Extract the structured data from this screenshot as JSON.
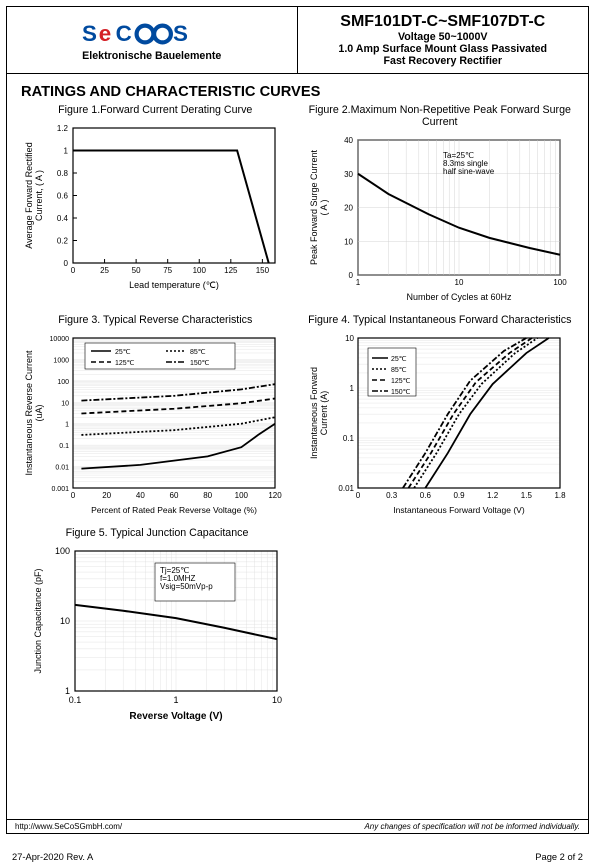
{
  "header": {
    "company_sub": "Elektronische Bauelemente",
    "partnum": "SMF101DT-C~SMF107DT-C",
    "subtitle1": "Voltage 50~1000V",
    "subtitle2": "1.0 Amp Surface Mount Glass Passivated",
    "subtitle3": "Fast Recovery Rectifier",
    "logo_colors": {
      "s1": "#004a9f",
      "e": "#d42027",
      "c": "#004a9f",
      "o": "#004a9f",
      "s2": "#004a9f"
    }
  },
  "section_title": "RATINGS AND CHARACTERISTIC CURVES",
  "fig1": {
    "title": "Figure 1.Forward Current Derating Curve",
    "xlabel": "Lead temperature (℃)",
    "ylabel": "Average Forward Rectified\nCurrent, ( A )",
    "xlim": [
      0,
      160
    ],
    "ylim": [
      0,
      1.2
    ],
    "xtick": [
      0,
      25,
      50,
      75,
      100,
      125,
      150
    ],
    "ytick": [
      0,
      0.2,
      0.4,
      0.6,
      0.8,
      1,
      1.2
    ],
    "line_color": "#000000",
    "data": [
      [
        0,
        1
      ],
      [
        130,
        1
      ],
      [
        155,
        0
      ]
    ]
  },
  "fig2": {
    "title": "Figure 2.Maximum Non-Repetitive Peak\nForward Surge Current",
    "xlabel": "Number of Cycles at 60Hz",
    "ylabel": "Peak Forward Surge Current\n( A )",
    "xscale": "log",
    "xlim": [
      1,
      100
    ],
    "ylim": [
      0,
      40
    ],
    "ytick": [
      0,
      10,
      20,
      30,
      40
    ],
    "note": "Ta=25℃\n8.3ms single\nhalf sine-wave",
    "line_color": "#000000",
    "data": [
      [
        1,
        30
      ],
      [
        2,
        24
      ],
      [
        5,
        18
      ],
      [
        10,
        14
      ],
      [
        20,
        11
      ],
      [
        50,
        8
      ],
      [
        100,
        6
      ]
    ]
  },
  "fig3": {
    "title": "Figure 3. Typical Reverse Characteristics",
    "xlabel": "Percent of  Rated Peak Reverse Voltage (%)",
    "ylabel": "Instantaneous Reverse Current\n(uA)",
    "xlim": [
      0,
      120
    ],
    "xtick": [
      0,
      20,
      40,
      60,
      80,
      100,
      120
    ],
    "yscale": "log",
    "ylim": [
      0.001,
      10000
    ],
    "legend": [
      "25℃",
      "85℃",
      "125℃",
      "150℃"
    ],
    "dash": [
      "solid",
      "2,2",
      "5,3",
      "6,2,2,2"
    ],
    "line_color": "#000000",
    "series": [
      [
        [
          5,
          0.008
        ],
        [
          40,
          0.012
        ],
        [
          80,
          0.03
        ],
        [
          100,
          0.08
        ],
        [
          110,
          0.3
        ],
        [
          120,
          1
        ]
      ],
      [
        [
          5,
          0.3
        ],
        [
          60,
          0.5
        ],
        [
          100,
          1
        ],
        [
          120,
          2
        ]
      ],
      [
        [
          5,
          3
        ],
        [
          60,
          5
        ],
        [
          100,
          9
        ],
        [
          120,
          15
        ]
      ],
      [
        [
          5,
          12
        ],
        [
          60,
          20
        ],
        [
          100,
          40
        ],
        [
          120,
          70
        ]
      ]
    ]
  },
  "fig4": {
    "title": "Figure 4. Typical Instantaneous Forward\nCharacteristics",
    "xlabel": "Instantaneous Forward Voltage (V)",
    "ylabel": "Instantaneous Forward\nCurrent (A)",
    "xlim": [
      0,
      1.8
    ],
    "xtick": [
      0,
      0.3,
      0.6,
      0.9,
      1.2,
      1.5,
      1.8
    ],
    "yscale": "log",
    "ylim": [
      0.01,
      10
    ],
    "legend": [
      "25℃",
      "85℃",
      "125℃",
      "150℃"
    ],
    "dash": [
      "solid",
      "2,2",
      "5,3",
      "6,2,2,2"
    ],
    "line_color": "#000000",
    "series": [
      [
        [
          0.6,
          0.01
        ],
        [
          0.8,
          0.05
        ],
        [
          1.0,
          0.3
        ],
        [
          1.2,
          1.2
        ],
        [
          1.5,
          5
        ],
        [
          1.7,
          10
        ]
      ],
      [
        [
          0.5,
          0.01
        ],
        [
          0.7,
          0.05
        ],
        [
          0.9,
          0.3
        ],
        [
          1.1,
          1.2
        ],
        [
          1.4,
          5
        ],
        [
          1.6,
          10
        ]
      ],
      [
        [
          0.45,
          0.01
        ],
        [
          0.65,
          0.05
        ],
        [
          0.85,
          0.3
        ],
        [
          1.05,
          1.3
        ],
        [
          1.35,
          5
        ],
        [
          1.55,
          10
        ]
      ],
      [
        [
          0.4,
          0.01
        ],
        [
          0.6,
          0.05
        ],
        [
          0.8,
          0.3
        ],
        [
          1.0,
          1.4
        ],
        [
          1.3,
          5.5
        ],
        [
          1.5,
          10
        ]
      ]
    ]
  },
  "fig5": {
    "title": "Figure 5. Typical Junction Capacitance",
    "xlabel": "Reverse Voltage (V)",
    "ylabel": "Junction Capacitance (pF)",
    "xscale": "log",
    "xlim": [
      0.1,
      10
    ],
    "yscale": "log",
    "ylim": [
      1,
      100
    ],
    "note": "Tj=25℃\nf=1.0MHZ\nVsig=50mVp-p",
    "line_color": "#000000",
    "data": [
      [
        0.1,
        17
      ],
      [
        0.3,
        14
      ],
      [
        1,
        11
      ],
      [
        3,
        8
      ],
      [
        10,
        5.5
      ]
    ]
  },
  "footer": {
    "url": "http://www.SeCoSGmbH.com/",
    "note": "Any changes of specification will not be informed individually.",
    "rev": "27-Apr-2020 Rev. A",
    "page": "Page  2  of  2"
  }
}
